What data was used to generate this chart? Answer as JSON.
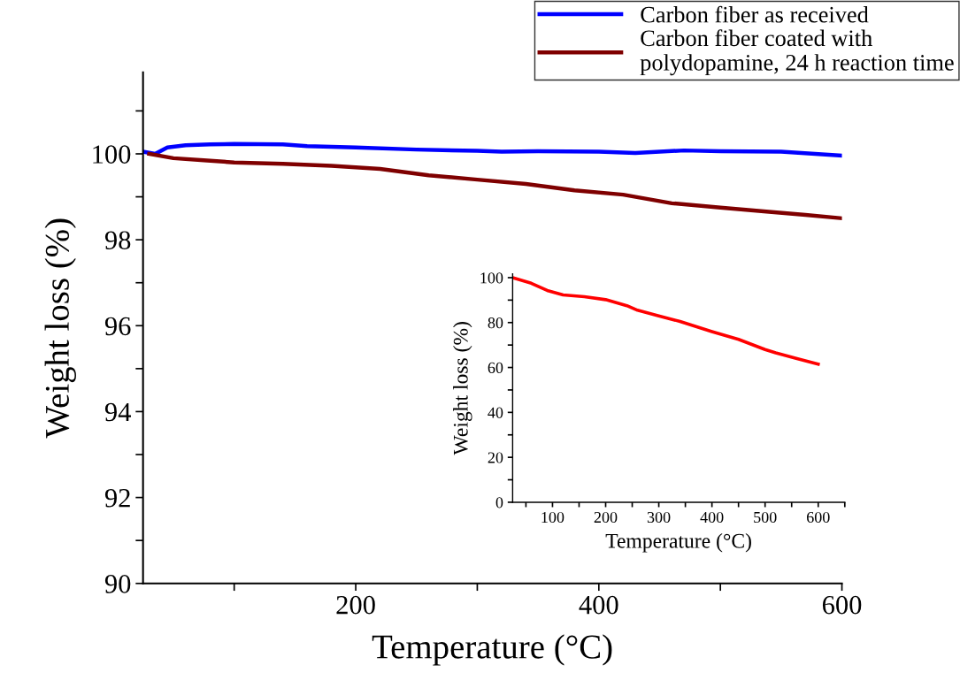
{
  "chart_data": [
    {
      "type": "line",
      "xlabel": "Temperature (°C)",
      "ylabel": "Weight loss (%)",
      "xlim": [
        25,
        600
      ],
      "ylim": [
        90,
        101.9
      ],
      "xticks": [
        {
          "value": 100,
          "label": null
        },
        200,
        {
          "value": 300,
          "label": null
        },
        400,
        {
          "value": 500,
          "label": null
        },
        600
      ],
      "yticks": [
        90,
        {
          "value": 91,
          "label": null
        },
        92,
        {
          "value": 93,
          "label": null
        },
        94,
        {
          "value": 95,
          "label": null
        },
        96,
        {
          "value": 97,
          "label": null
        },
        98,
        {
          "value": 99,
          "label": null
        },
        100,
        {
          "value": 101,
          "label": null
        }
      ],
      "legend": "top right",
      "marker": "none",
      "line_style": "solid",
      "series": [
        {
          "name": "Carbon fiber as received",
          "color": "#0000ff",
          "x": [
            25,
            35,
            45,
            60,
            80,
            100,
            140,
            160,
            200,
            250,
            300,
            320,
            350,
            400,
            430,
            470,
            500,
            550,
            600
          ],
          "values": [
            100.05,
            100.0,
            100.15,
            100.2,
            100.22,
            100.23,
            100.22,
            100.18,
            100.15,
            100.1,
            100.07,
            100.05,
            100.06,
            100.05,
            100.02,
            100.08,
            100.06,
            100.05,
            99.96
          ]
        },
        {
          "name": "Carbon fiber coated with\npolydopamine, 24 h reaction time",
          "color": "#7f0000",
          "x": [
            30,
            50,
            75,
            100,
            140,
            180,
            220,
            260,
            300,
            340,
            380,
            420,
            460,
            500,
            540,
            570,
            600
          ],
          "values": [
            100.0,
            99.9,
            99.85,
            99.8,
            99.77,
            99.72,
            99.65,
            99.5,
            99.4,
            99.3,
            99.15,
            99.05,
            98.85,
            98.75,
            98.65,
            98.58,
            98.5
          ]
        }
      ]
    },
    {
      "type": "line",
      "xlabel": "Temperature (°C)",
      "ylabel": "Weight loss (%)",
      "xlim": [
        25,
        650
      ],
      "ylim": [
        0,
        101.7
      ],
      "xticks": [
        {
          "value": 50,
          "label": null
        },
        100,
        {
          "value": 150,
          "label": null
        },
        200,
        {
          "value": 250,
          "label": null
        },
        300,
        {
          "value": 350,
          "label": null
        },
        400,
        {
          "value": 450,
          "label": null
        },
        500,
        {
          "value": 550,
          "label": null
        },
        600,
        {
          "value": 650,
          "label": null
        }
      ],
      "yticks": [
        0,
        {
          "value": 10,
          "label": null
        },
        20,
        {
          "value": 30,
          "label": null
        },
        40,
        {
          "value": 50,
          "label": null
        },
        60,
        {
          "value": 70,
          "label": null
        },
        80,
        {
          "value": 90,
          "label": null
        },
        100
      ],
      "marker": "none",
      "line_style": "solid",
      "series": [
        {
          "color": "#ff0000",
          "x": [
            25,
            60,
            90,
            120,
            160,
            200,
            240,
            260,
            300,
            340,
            400,
            450,
            500,
            520,
            560,
            600
          ],
          "values": [
            100,
            97.5,
            94.3,
            92.3,
            91.5,
            90.2,
            87.5,
            85.5,
            83,
            80.5,
            76,
            72.5,
            68,
            66.5,
            64,
            61.5
          ]
        }
      ]
    }
  ]
}
